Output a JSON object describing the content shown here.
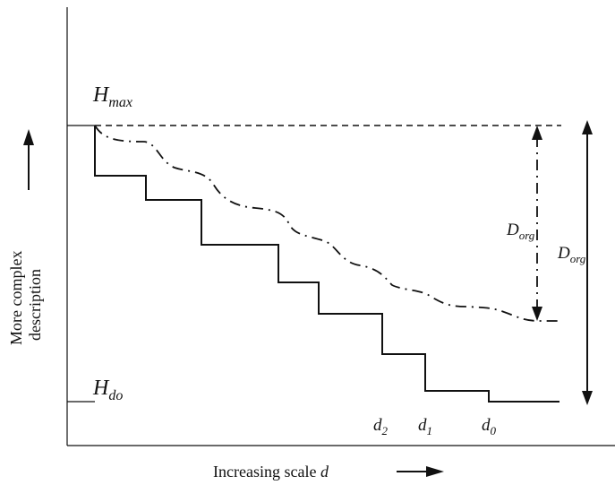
{
  "labels": {
    "h_max": {
      "base": "H",
      "sub": "max"
    },
    "h_do": {
      "base": "H",
      "sub": "do"
    },
    "d_org_inner": {
      "base": "D",
      "sub": "org"
    },
    "d_org_outer": {
      "base": "D",
      "sub": "org"
    },
    "d2": {
      "base": "d",
      "sub": "2"
    },
    "d1": {
      "base": "d",
      "sub": "1"
    },
    "d0": {
      "base": "d",
      "sub": "0"
    },
    "x_axis": {
      "text": "Increasing scale ",
      "var": "d"
    },
    "y_axis_line1": "More complex",
    "y_axis_line2": "description"
  }
}
